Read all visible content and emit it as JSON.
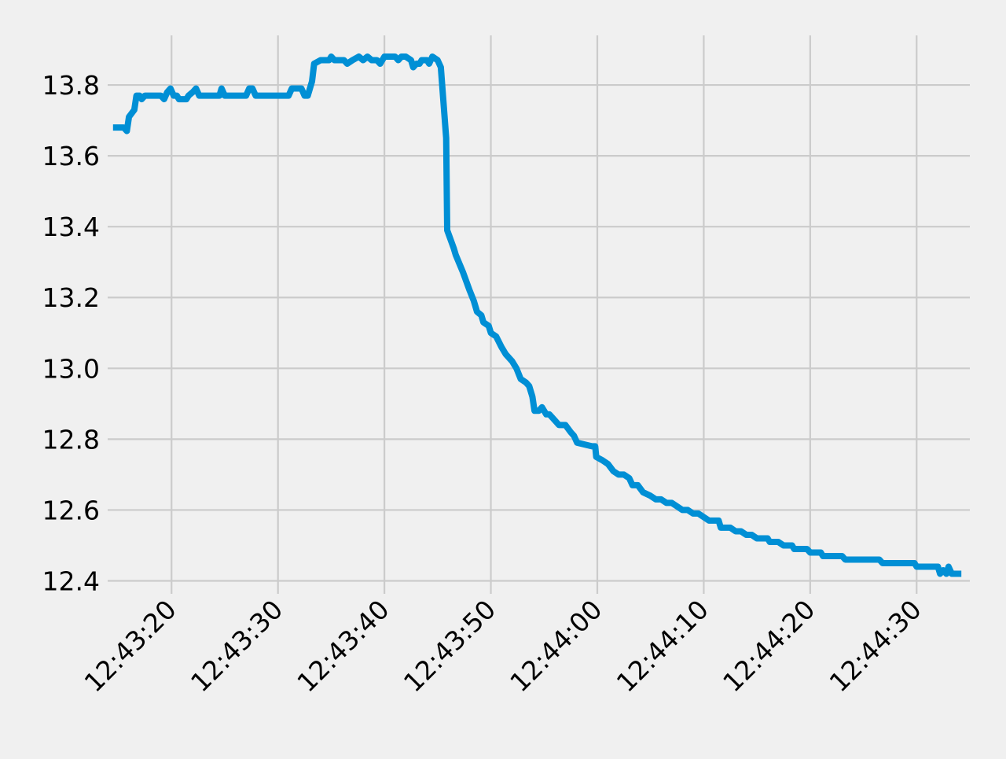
{
  "chart_data": {
    "type": "line",
    "title": "",
    "xlabel": "",
    "ylabel": "",
    "xlim": [
      "12:43:14",
      "12:44:35"
    ],
    "ylim": [
      12.39,
      13.94
    ],
    "x_ticks": [
      "12:43:20",
      "12:43:30",
      "12:43:40",
      "12:43:50",
      "12:44:00",
      "12:44:10",
      "12:44:20",
      "12:44:30"
    ],
    "y_ticks": [
      "12.4",
      "12.6",
      "12.8",
      "13.0",
      "13.2",
      "13.4",
      "13.6",
      "13.8"
    ],
    "grid": true,
    "colors": {
      "background": "#f0f0f0",
      "grid": "#cbcbcb",
      "line": "#008fd5"
    },
    "series": [
      {
        "color": "#008fd5",
        "points": [
          [
            "12:43:14.5",
            13.68
          ],
          [
            "12:43:15.5",
            13.68
          ],
          [
            "12:43:15.8",
            13.67
          ],
          [
            "12:43:16.0",
            13.71
          ],
          [
            "12:43:16.5",
            13.73
          ],
          [
            "12:43:16.7",
            13.77
          ],
          [
            "12:43:17.0",
            13.77
          ],
          [
            "12:43:17.2",
            13.76
          ],
          [
            "12:43:17.5",
            13.77
          ],
          [
            "12:43:19.0",
            13.77
          ],
          [
            "12:43:19.3",
            13.76
          ],
          [
            "12:43:19.6",
            13.78
          ],
          [
            "12:43:19.9",
            13.79
          ],
          [
            "12:43:20.2",
            13.77
          ],
          [
            "12:43:20.5",
            13.77
          ],
          [
            "12:43:20.7",
            13.76
          ],
          [
            "12:43:21.4",
            13.76
          ],
          [
            "12:43:21.6",
            13.77
          ],
          [
            "12:43:22.0",
            13.78
          ],
          [
            "12:43:22.3",
            13.79
          ],
          [
            "12:43:22.6",
            13.77
          ],
          [
            "12:43:24.5",
            13.77
          ],
          [
            "12:43:24.7",
            13.79
          ],
          [
            "12:43:25.0",
            13.77
          ],
          [
            "12:43:27.0",
            13.77
          ],
          [
            "12:43:27.3",
            13.79
          ],
          [
            "12:43:27.6",
            13.79
          ],
          [
            "12:43:27.9",
            13.77
          ],
          [
            "12:43:31.0",
            13.77
          ],
          [
            "12:43:31.3",
            13.79
          ],
          [
            "12:43:32.2",
            13.79
          ],
          [
            "12:43:32.5",
            13.77
          ],
          [
            "12:43:32.8",
            13.77
          ],
          [
            "12:43:33.2",
            13.81
          ],
          [
            "12:43:33.4",
            13.86
          ],
          [
            "12:43:34.0",
            13.87
          ],
          [
            "12:43:34.8",
            13.87
          ],
          [
            "12:43:35.0",
            13.88
          ],
          [
            "12:43:35.3",
            13.87
          ],
          [
            "12:43:36.2",
            13.87
          ],
          [
            "12:43:36.5",
            13.86
          ],
          [
            "12:43:37.0",
            13.87
          ],
          [
            "12:43:37.6",
            13.88
          ],
          [
            "12:43:38.0",
            13.87
          ],
          [
            "12:43:38.4",
            13.88
          ],
          [
            "12:43:38.8",
            13.87
          ],
          [
            "12:43:39.3",
            13.87
          ],
          [
            "12:43:39.6",
            13.86
          ],
          [
            "12:43:40.0",
            13.88
          ],
          [
            "12:43:41.0",
            13.88
          ],
          [
            "12:43:41.3",
            13.87
          ],
          [
            "12:43:41.6",
            13.88
          ],
          [
            "12:43:42.0",
            13.88
          ],
          [
            "12:43:42.5",
            13.87
          ],
          [
            "12:43:42.7",
            13.85
          ],
          [
            "12:43:43.0",
            13.86
          ],
          [
            "12:43:43.3",
            13.86
          ],
          [
            "12:43:43.5",
            13.87
          ],
          [
            "12:43:44.0",
            13.87
          ],
          [
            "12:43:44.2",
            13.86
          ],
          [
            "12:43:44.5",
            13.88
          ],
          [
            "12:43:45.0",
            13.87
          ],
          [
            "12:43:45.3",
            13.85
          ],
          [
            "12:43:45.8",
            13.65
          ],
          [
            "12:43:45.9",
            13.39
          ],
          [
            "12:43:46.5",
            13.34
          ],
          [
            "12:43:46.7",
            13.32
          ],
          [
            "12:43:47.4",
            13.27
          ],
          [
            "12:43:48.0",
            13.22
          ],
          [
            "12:43:48.4",
            13.19
          ],
          [
            "12:43:48.7",
            13.16
          ],
          [
            "12:43:49.1",
            13.15
          ],
          [
            "12:43:49.3",
            13.13
          ],
          [
            "12:43:49.8",
            13.12
          ],
          [
            "12:43:50.0",
            13.1
          ],
          [
            "12:43:50.5",
            13.09
          ],
          [
            "12:43:51.0",
            13.06
          ],
          [
            "12:43:51.4",
            13.04
          ],
          [
            "12:43:52.0",
            13.02
          ],
          [
            "12:43:52.4",
            13.0
          ],
          [
            "12:43:52.8",
            12.97
          ],
          [
            "12:43:53.3",
            12.96
          ],
          [
            "12:43:53.6",
            12.95
          ],
          [
            "12:43:53.9",
            12.92
          ],
          [
            "12:43:54.1",
            12.88
          ],
          [
            "12:43:54.5",
            12.88
          ],
          [
            "12:43:54.8",
            12.89
          ],
          [
            "12:43:55.2",
            12.87
          ],
          [
            "12:43:55.5",
            12.87
          ],
          [
            "12:43:55.8",
            12.86
          ],
          [
            "12:43:56.1",
            12.85
          ],
          [
            "12:43:56.4",
            12.84
          ],
          [
            "12:43:57.0",
            12.84
          ],
          [
            "12:43:57.5",
            12.82
          ],
          [
            "12:43:57.8",
            12.81
          ],
          [
            "12:43:58.1",
            12.79
          ],
          [
            "12:43:59.5",
            12.78
          ],
          [
            "12:43:59.8",
            12.78
          ],
          [
            "12:43:59.9",
            12.75
          ],
          [
            "12:44:00.5",
            12.74
          ],
          [
            "12:44:01.0",
            12.73
          ],
          [
            "12:44:01.5",
            12.71
          ],
          [
            "12:44:02.0",
            12.7
          ],
          [
            "12:44:02.5",
            12.7
          ],
          [
            "12:44:03.0",
            12.69
          ],
          [
            "12:44:03.3",
            12.67
          ],
          [
            "12:44:03.8",
            12.67
          ],
          [
            "12:44:04.3",
            12.65
          ],
          [
            "12:44:05.0",
            12.64
          ],
          [
            "12:44:05.5",
            12.63
          ],
          [
            "12:44:06.0",
            12.63
          ],
          [
            "12:44:06.5",
            12.62
          ],
          [
            "12:44:07.0",
            12.62
          ],
          [
            "12:44:07.5",
            12.61
          ],
          [
            "12:44:08.0",
            12.6
          ],
          [
            "12:44:08.5",
            12.6
          ],
          [
            "12:44:09.0",
            12.59
          ],
          [
            "12:44:09.5",
            12.59
          ],
          [
            "12:44:10.0",
            12.58
          ],
          [
            "12:44:10.5",
            12.57
          ],
          [
            "12:44:11.4",
            12.57
          ],
          [
            "12:44:11.6",
            12.55
          ],
          [
            "12:44:12.5",
            12.55
          ],
          [
            "12:44:13.0",
            12.54
          ],
          [
            "12:44:13.5",
            12.54
          ],
          [
            "12:44:14.0",
            12.53
          ],
          [
            "12:44:14.5",
            12.53
          ],
          [
            "12:44:15.0",
            12.52
          ],
          [
            "12:44:16.0",
            12.52
          ],
          [
            "12:44:16.2",
            12.51
          ],
          [
            "12:44:17.0",
            12.51
          ],
          [
            "12:44:17.5",
            12.5
          ],
          [
            "12:44:18.3",
            12.5
          ],
          [
            "12:44:18.5",
            12.49
          ],
          [
            "12:44:19.7",
            12.49
          ],
          [
            "12:44:20.0",
            12.48
          ],
          [
            "12:44:21.0",
            12.48
          ],
          [
            "12:44:21.2",
            12.47
          ],
          [
            "12:44:23.0",
            12.47
          ],
          [
            "12:44:23.3",
            12.46
          ],
          [
            "12:44:26.5",
            12.46
          ],
          [
            "12:44:26.8",
            12.45
          ],
          [
            "12:44:29.8",
            12.45
          ],
          [
            "12:44:30.0",
            12.44
          ],
          [
            "12:44:32.0",
            12.44
          ],
          [
            "12:44:32.2",
            12.42
          ],
          [
            "12:44:32.5",
            12.43
          ],
          [
            "12:44:32.8",
            12.42
          ],
          [
            "12:44:33.0",
            12.44
          ],
          [
            "12:44:33.3",
            12.42
          ],
          [
            "12:44:34.2",
            12.42
          ]
        ]
      }
    ]
  }
}
